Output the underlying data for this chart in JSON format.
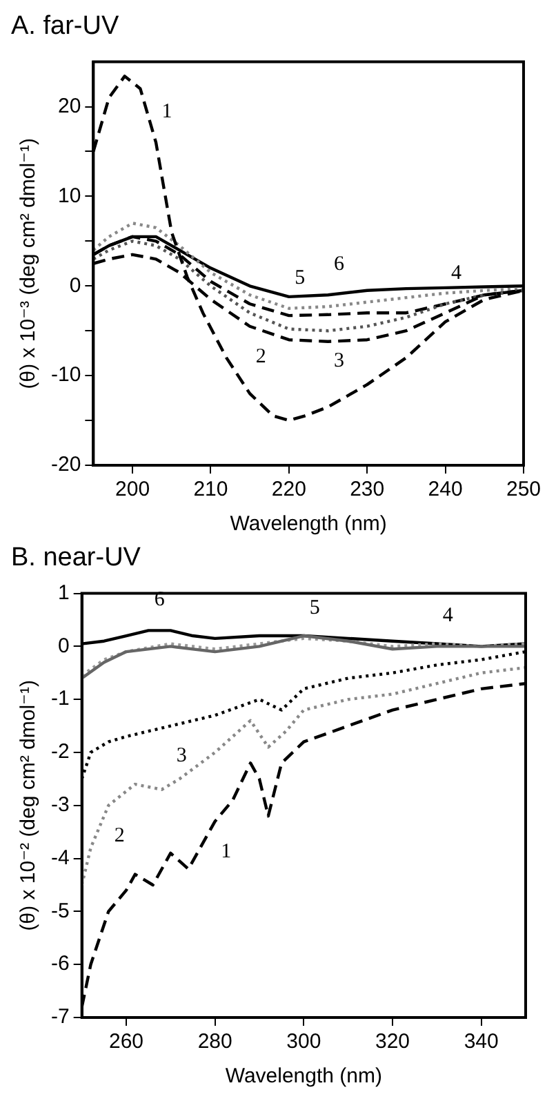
{
  "chart_data": [
    {
      "type": "line",
      "title": "A. far-UV",
      "xlabel": "Wavelength (nm)",
      "ylabel": "(θ) x 10⁻³ (deg cm² dmol⁻¹)",
      "xlim": [
        195,
        250
      ],
      "xticks": [
        200,
        210,
        220,
        230,
        240,
        250
      ],
      "ylim": [
        -20,
        25
      ],
      "yticks": [
        -20,
        {
          "value": -15,
          "label": null
        },
        -10,
        {
          "value": -5,
          "label": null
        },
        0,
        {
          "value": 5,
          "label": null
        },
        10,
        {
          "value": 15,
          "label": null
        },
        20
      ],
      "grid": false,
      "legend": false,
      "marker": "none",
      "series": [
        {
          "color": "#000000",
          "line_style": "dashed",
          "x": [
            195,
            197,
            199,
            201,
            203,
            205,
            207,
            209,
            212,
            215,
            218,
            220,
            222,
            225,
            230,
            235,
            240,
            245,
            250
          ],
          "values": [
            15,
            21,
            23.4,
            22,
            16,
            6,
            1,
            -3,
            -8,
            -12,
            -14.5,
            -15,
            -14.5,
            -13.5,
            -11,
            -8,
            -4,
            -1.5,
            -0.5
          ]
        },
        {
          "color": "#000000",
          "line_style": "dashed",
          "x": [
            195,
            197,
            200,
            203,
            206,
            210,
            215,
            220,
            225,
            230,
            235,
            240,
            245,
            250
          ],
          "values": [
            2.5,
            3,
            3.5,
            3,
            1.5,
            -1.5,
            -4.5,
            -6,
            -6.2,
            -6,
            -5,
            -3,
            -1,
            -0.5
          ]
        },
        {
          "color": "#555555",
          "line_style": "dotted",
          "x": [
            195,
            197,
            200,
            203,
            206,
            210,
            215,
            220,
            225,
            230,
            235,
            240,
            245,
            250
          ],
          "values": [
            3,
            4,
            5,
            4.5,
            3,
            0,
            -3,
            -4.8,
            -5,
            -4.5,
            -3.5,
            -2,
            -1,
            -0.5
          ]
        },
        {
          "color": "#000000",
          "line_style": "dashed",
          "x": [
            195,
            197,
            200,
            203,
            206,
            210,
            215,
            220,
            225,
            230,
            235,
            240,
            245,
            250
          ],
          "values": [
            3.5,
            4.5,
            5.5,
            5,
            3.5,
            0.5,
            -2,
            -3.3,
            -3.2,
            -3,
            -3,
            -2,
            -1,
            -0.5
          ]
        },
        {
          "color": "#888888",
          "line_style": "dotted",
          "x": [
            195,
            197,
            200,
            203,
            206,
            210,
            215,
            220,
            225,
            230,
            235,
            240,
            245,
            250
          ],
          "values": [
            4,
            5.5,
            7,
            6.5,
            4.5,
            1.5,
            -1,
            -2.5,
            -2.3,
            -1.8,
            -1.3,
            -0.8,
            -0.5,
            -0.3
          ]
        },
        {
          "color": "#000000",
          "line_style": "solid",
          "x": [
            195,
            197,
            200,
            203,
            206,
            210,
            215,
            220,
            225,
            230,
            235,
            240,
            245,
            250
          ],
          "values": [
            3.5,
            4.5,
            5.5,
            5.5,
            4,
            2,
            0,
            -1.2,
            -1,
            -0.5,
            -0.3,
            -0.2,
            -0.1,
            0
          ]
        }
      ],
      "annotations": [
        {
          "text": "1",
          "x": 203,
          "y": 16
        },
        {
          "text": "5",
          "x": 220,
          "y": -2.5
        },
        {
          "text": "6",
          "x": 225,
          "y": -1
        },
        {
          "text": "2",
          "x": 215,
          "y": -4.5
        },
        {
          "text": "3",
          "x": 225,
          "y": -5
        },
        {
          "text": "4",
          "x": 240,
          "y": -2
        }
      ]
    },
    {
      "type": "line",
      "title": "B. near-UV",
      "xlabel": "Wavelength (nm)",
      "ylabel": "(θ) x 10⁻² (deg cm² dmol⁻¹)",
      "xlim": [
        250,
        350
      ],
      "xticks": [
        260,
        280,
        300,
        320,
        340
      ],
      "ylim": [
        -7,
        1
      ],
      "yticks": [
        -7,
        -6,
        -5,
        -4,
        -3,
        -2,
        -1,
        0,
        1
      ],
      "grid": false,
      "legend": false,
      "marker": "none",
      "series": [
        {
          "color": "#000000",
          "line_style": "dashed",
          "x": [
            250,
            252,
            256,
            260,
            262,
            266,
            270,
            274,
            280,
            284,
            288,
            290,
            292,
            295,
            300,
            310,
            320,
            330,
            340,
            350
          ],
          "values": [
            -6.8,
            -6,
            -5,
            -4.6,
            -4.3,
            -4.5,
            -3.9,
            -4.2,
            -3.3,
            -2.9,
            -2.2,
            -2.5,
            -3.2,
            -2.2,
            -1.8,
            -1.5,
            -1.2,
            -1,
            -0.8,
            -0.7
          ]
        },
        {
          "color": "#888888",
          "line_style": "dotted",
          "x": [
            250,
            252,
            256,
            262,
            268,
            272,
            280,
            288,
            292,
            296,
            300,
            310,
            320,
            330,
            340,
            350
          ],
          "values": [
            -4.5,
            -3.8,
            -3,
            -2.6,
            -2.7,
            -2.5,
            -2,
            -1.4,
            -1.9,
            -1.6,
            -1.2,
            -1,
            -0.9,
            -0.7,
            -0.5,
            -0.4
          ]
        },
        {
          "color": "#000000",
          "line_style": "dotted",
          "x": [
            250,
            252,
            256,
            260,
            270,
            280,
            290,
            295,
            300,
            310,
            320,
            330,
            340,
            350
          ],
          "values": [
            -2.5,
            -2,
            -1.8,
            -1.7,
            -1.5,
            -1.3,
            -1,
            -1.2,
            -0.8,
            -0.6,
            -0.5,
            -0.35,
            -0.25,
            -0.1
          ]
        },
        {
          "color": "#666666",
          "line_style": "solid",
          "x": [
            250,
            255,
            260,
            270,
            280,
            290,
            300,
            310,
            320,
            330,
            340,
            350
          ],
          "values": [
            -0.6,
            -0.3,
            -0.1,
            0,
            -0.1,
            0,
            0.2,
            0.1,
            -0.05,
            0,
            0,
            0
          ]
        },
        {
          "color": "#999999",
          "line_style": "dotted",
          "x": [
            250,
            255,
            260,
            270,
            280,
            290,
            300,
            310,
            320,
            330,
            340,
            350
          ],
          "values": [
            -0.55,
            -0.25,
            -0.1,
            0.05,
            -0.05,
            0.05,
            0.15,
            0.1,
            0,
            0.05,
            0,
            0.05
          ]
        },
        {
          "color": "#000000",
          "line_style": "solid",
          "x": [
            250,
            255,
            260,
            265,
            270,
            275,
            280,
            290,
            300,
            310,
            320,
            330,
            340,
            350
          ],
          "values": [
            0.05,
            0.1,
            0.2,
            0.3,
            0.3,
            0.2,
            0.15,
            0.2,
            0.2,
            0.15,
            0.1,
            0.05,
            0,
            0.05
          ]
        }
      ],
      "annotations": [
        {
          "text": "6",
          "x": 265,
          "y": 0.3
        },
        {
          "text": "5",
          "x": 300,
          "y": 0.15
        },
        {
          "text": "4",
          "x": 330,
          "y": 0
        },
        {
          "text": "3",
          "x": 270,
          "y": -1.5
        },
        {
          "text": "2",
          "x": 256,
          "y": -3
        },
        {
          "text": "1",
          "x": 280,
          "y": -3.3
        }
      ]
    }
  ]
}
